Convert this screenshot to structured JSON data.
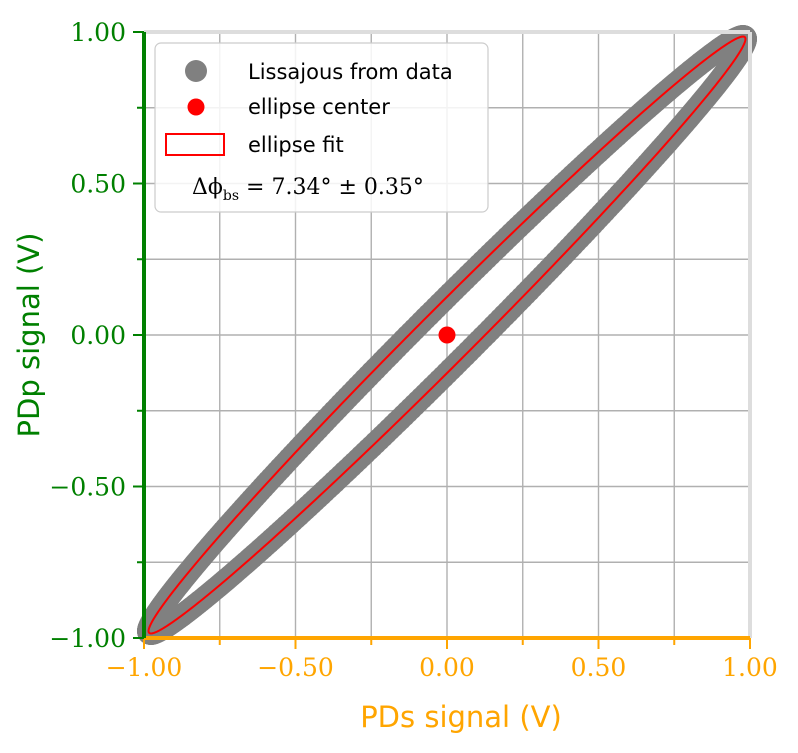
{
  "chart_data": {
    "type": "scatter",
    "title": "",
    "xlabel": "PDs signal (V)",
    "ylabel": "PDp signal (V)",
    "xlim": [
      -1.0,
      1.0
    ],
    "ylim": [
      -1.0,
      1.0
    ],
    "x_ticks": [
      -1.0,
      -0.5,
      0.0,
      0.5,
      1.0
    ],
    "y_ticks": [
      -1.0,
      -0.5,
      0.0,
      0.5,
      1.0
    ],
    "x_tick_labels": [
      "−1.00",
      "−0.50",
      "0.00",
      "0.50",
      "1.00"
    ],
    "y_tick_labels": [
      "−1.00",
      "−0.50",
      "0.00",
      "0.50",
      "1.00"
    ],
    "x_grid": [
      -1.0,
      -0.75,
      -0.5,
      -0.25,
      0.0,
      0.25,
      0.5,
      0.75,
      1.0
    ],
    "y_grid": [
      -1.0,
      -0.75,
      -0.5,
      -0.25,
      0.0,
      0.25,
      0.5,
      0.75,
      1.0
    ],
    "grid": true,
    "legend_position": "top-left",
    "series": [
      {
        "name": "Lissajous from data",
        "kind": "scatter",
        "color": "#808080",
        "amplitude": 0.985,
        "phase_deg": 7.34,
        "center": [
          0.0,
          0.0
        ],
        "x": [
          -0.985,
          -0.97,
          -0.94,
          -0.89,
          -0.8,
          -0.7,
          -0.6,
          -0.5,
          -0.4,
          -0.3,
          -0.2,
          -0.1,
          0.0,
          0.1,
          0.2,
          0.3,
          0.4,
          0.5,
          0.6,
          0.7,
          0.8,
          0.89,
          0.94,
          0.97,
          0.985
        ],
        "y_upper": [
          -0.977,
          -0.93,
          -0.88,
          -0.8,
          -0.68,
          -0.56,
          -0.45,
          -0.34,
          -0.24,
          -0.14,
          -0.03,
          0.07,
          0.126,
          0.22,
          0.32,
          0.42,
          0.52,
          0.62,
          0.72,
          0.81,
          0.89,
          0.96,
          0.98,
          0.99,
          0.977
        ],
        "y_lower": [
          -0.977,
          -0.99,
          -0.98,
          -0.96,
          -0.89,
          -0.81,
          -0.72,
          -0.62,
          -0.52,
          -0.42,
          -0.32,
          -0.22,
          -0.126,
          -0.07,
          0.03,
          0.14,
          0.24,
          0.34,
          0.45,
          0.56,
          0.68,
          0.8,
          0.88,
          0.93,
          0.977
        ]
      },
      {
        "name": "ellipse center",
        "kind": "point",
        "color": "#ff0000",
        "x": [
          0.0
        ],
        "y": [
          0.0
        ]
      },
      {
        "name": "ellipse fit",
        "kind": "ellipse",
        "color": "#ff0000",
        "amplitude": 0.985,
        "phase_deg": 7.34,
        "center": [
          0.0,
          0.0
        ]
      }
    ],
    "annotation": {
      "symbol": "Δϕ",
      "subscript": "bs",
      "text": " = 7.34° ± 0.35°"
    },
    "colors": {
      "x_axis": "#ffa500",
      "y_axis": "#008000",
      "grid": "#b0b0b0",
      "frame": "#dddddd"
    }
  }
}
